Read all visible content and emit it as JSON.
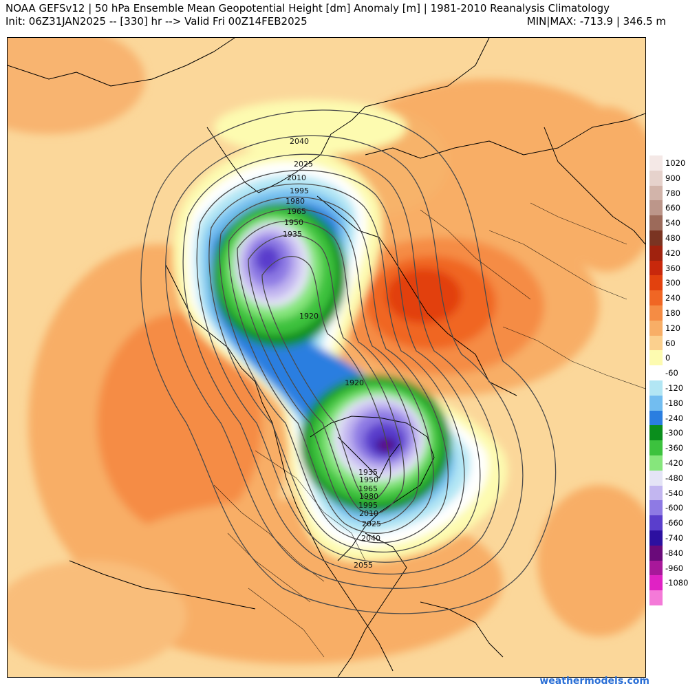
{
  "header": {
    "title": "NOAA GEFSv12 | 50 hPa Ensemble Mean Geopotential Height [dm] Anomaly [m] | 1981-2010 Reanalysis Climatology",
    "init_line": "Init: 06Z31JAN2025 -- [330] hr --> Valid Fri 00Z14FEB2025",
    "minmax": "MIN|MAX: -713.9 | 346.5 m"
  },
  "map": {
    "contour_labels": {
      "c2040a": "2040",
      "c2025a": "2025",
      "c2010a": "2010",
      "c1995a": "1995",
      "c1980a": "1980",
      "c1965a": "1965",
      "c1950a": "1950",
      "c1935a": "1935",
      "c1920a": "1920",
      "c1920b": "1920",
      "c1935b": "1935",
      "c1950b": "1950",
      "c1965b": "1965",
      "c1980b": "1980",
      "c1995b": "1995",
      "c2010b": "2010",
      "c2025b": "2025",
      "c2040b": "2040",
      "c2055": "2055"
    }
  },
  "colorbar": {
    "entries": [
      {
        "label": "1020",
        "color": "#f4e8e6"
      },
      {
        "label": "900",
        "color": "#e6d2cc"
      },
      {
        "label": "780",
        "color": "#d2b4aa"
      },
      {
        "label": "660",
        "color": "#bc968a"
      },
      {
        "label": "540",
        "color": "#9c6a5a"
      },
      {
        "label": "480",
        "color": "#7a3422"
      },
      {
        "label": "420",
        "color": "#a0220e"
      },
      {
        "label": "360",
        "color": "#c8280c"
      },
      {
        "label": "300",
        "color": "#e2410e"
      },
      {
        "label": "240",
        "color": "#f06624"
      },
      {
        "label": "180",
        "color": "#f58c44"
      },
      {
        "label": "120",
        "color": "#f8ae66"
      },
      {
        "label": "60",
        "color": "#fbd08e"
      },
      {
        "label": "0",
        "color": "#fdfbb0"
      },
      {
        "label": "-60",
        "color": "#ffffff"
      },
      {
        "label": "-120",
        "color": "#b2e6f4"
      },
      {
        "label": "-180",
        "color": "#72bdf0"
      },
      {
        "label": "-240",
        "color": "#2a7ee0"
      },
      {
        "label": "-300",
        "color": "#0a8e1c"
      },
      {
        "label": "-360",
        "color": "#3cc23e"
      },
      {
        "label": "-420",
        "color": "#86e67c"
      },
      {
        "label": "-480",
        "color": "#e4e4f6"
      },
      {
        "label": "-540",
        "color": "#c2b6f0"
      },
      {
        "label": "-600",
        "color": "#8e7ae4"
      },
      {
        "label": "-660",
        "color": "#5a3ecc"
      },
      {
        "label": "-740",
        "color": "#2c10a0"
      },
      {
        "label": "-840",
        "color": "#6a0a7a"
      },
      {
        "label": "-960",
        "color": "#a8189a"
      },
      {
        "label": "-1080",
        "color": "#e022c4"
      },
      {
        "label": "",
        "color": "#f47ad8"
      }
    ]
  },
  "footer": {
    "credit": "weathermodels.com"
  }
}
